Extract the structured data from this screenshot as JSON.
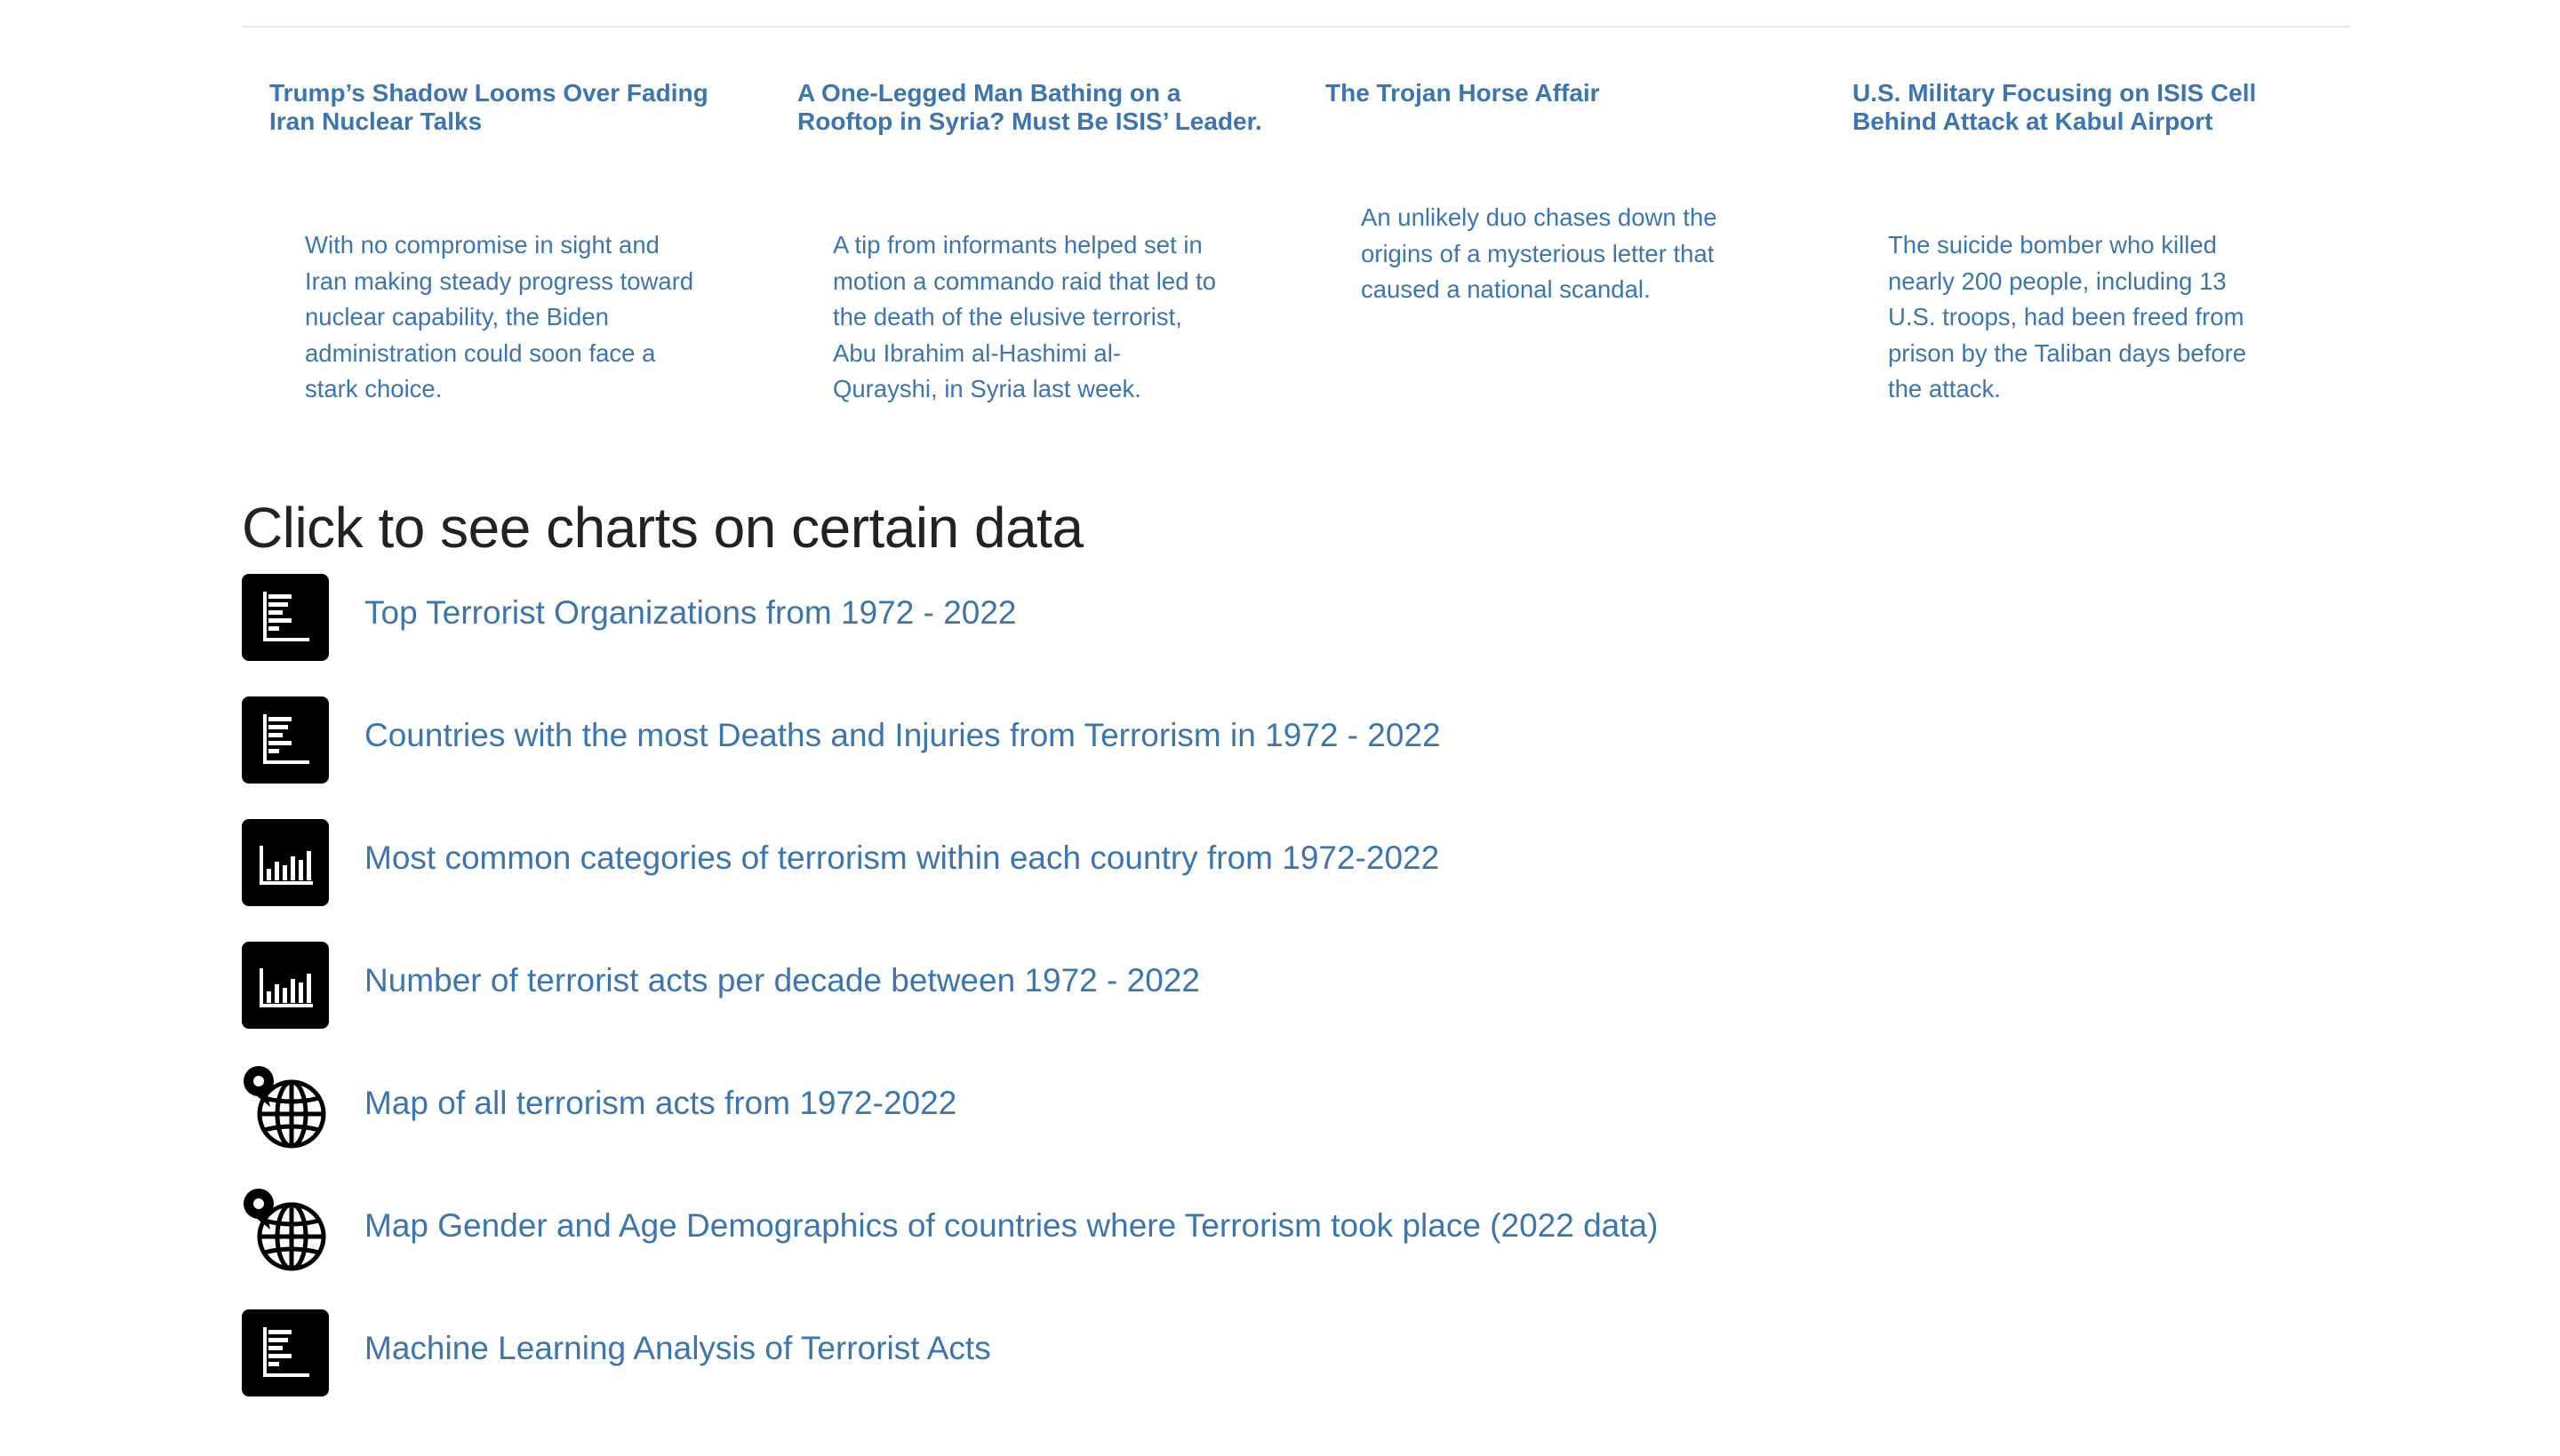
{
  "news": [
    {
      "title": "Trump’s Shadow Looms Over Fading Iran Nuclear Talks",
      "summary": "With no compromise in sight and Iran making steady progress toward nuclear capability, the Biden administration could soon face a stark choice."
    },
    {
      "title": "A One-Legged Man Bathing on a Rooftop in Syria? Must Be ISIS’ Leader.",
      "summary": "A tip from informants helped set in motion a commando raid that led to the death of the elusive terrorist, Abu Ibrahim al-Hashimi al-Qurayshi, in Syria last week."
    },
    {
      "title": "The Trojan Horse Affair",
      "summary": "An unlikely duo chases down the origins of a mysterious letter that caused a national scandal."
    },
    {
      "title": "U.S. Military Focusing on ISIS Cell Behind Attack at Kabul Airport",
      "summary": "The suicide bomber who killed nearly 200 people, including 13 U.S. troops, had been freed from prison by the Taliban days before the attack."
    }
  ],
  "charts_section": {
    "heading": "Click to see charts on certain data",
    "links": [
      {
        "label": "Top Terrorist Organizations from 1972 - 2022",
        "icon": "horizontal-bar-chart-icon"
      },
      {
        "label": "Countries with the most Deaths and Injuries from Terrorism in 1972 - 2022",
        "icon": "horizontal-bar-chart-icon"
      },
      {
        "label": "Most common categories of terrorism within each country from 1972-2022",
        "icon": "vertical-bar-chart-icon"
      },
      {
        "label": "Number of terrorist acts per decade between 1972 - 2022",
        "icon": "vertical-bar-chart-icon"
      },
      {
        "label": "Map of all terrorism acts from 1972-2022",
        "icon": "globe-pin-icon"
      },
      {
        "label": "Map Gender and Age Demographics of countries where Terrorism took place (2022 data)",
        "icon": "globe-pin-icon"
      },
      {
        "label": "Machine Learning Analysis of Terrorist Acts",
        "icon": "horizontal-bar-chart-icon"
      }
    ]
  },
  "colors": {
    "link": "#3c76b0",
    "heading": "#222222",
    "icon_bg": "#000000"
  }
}
